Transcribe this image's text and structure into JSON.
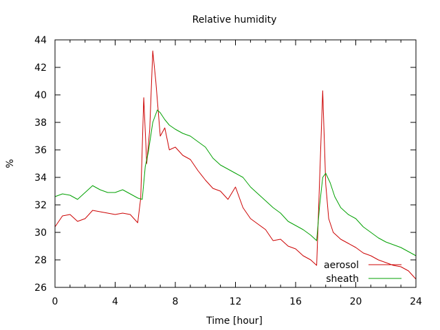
{
  "chart_data": {
    "type": "line",
    "title": "Relative humidity",
    "xlabel": "Time [hour]",
    "ylabel": "%",
    "xlim": [
      0,
      24
    ],
    "ylim": [
      26,
      44
    ],
    "xticks": [
      "0",
      "4",
      "8",
      "12",
      "16",
      "20",
      "24"
    ],
    "yticks": [
      "26",
      "28",
      "30",
      "32",
      "34",
      "36",
      "38",
      "40",
      "42",
      "44"
    ],
    "grid": false,
    "legend": "bottom-right",
    "series": [
      {
        "name": "aerosol",
        "color": "#cc0000",
        "x": [
          0,
          0.5,
          1.0,
          1.5,
          2.0,
          2.5,
          3.0,
          3.5,
          4.0,
          4.5,
          5.0,
          5.5,
          5.7,
          5.9,
          6.1,
          6.3,
          6.5,
          6.7,
          7.0,
          7.3,
          7.6,
          8.0,
          8.5,
          9.0,
          9.5,
          10.0,
          10.5,
          11.0,
          11.5,
          12.0,
          12.5,
          13.0,
          13.5,
          14.0,
          14.5,
          15.0,
          15.5,
          16.0,
          16.5,
          17.0,
          17.4,
          17.6,
          17.8,
          18.0,
          18.2,
          18.5,
          19.0,
          19.5,
          20.0,
          20.5,
          21.0,
          21.5,
          22.0,
          22.5,
          23.0,
          23.5,
          24.0
        ],
        "y": [
          30.4,
          31.2,
          31.3,
          30.8,
          31.0,
          31.6,
          31.5,
          31.4,
          31.3,
          31.4,
          31.3,
          30.7,
          32.5,
          39.8,
          35.0,
          37.5,
          43.2,
          41.0,
          37.0,
          37.6,
          36.0,
          36.2,
          35.6,
          35.3,
          34.5,
          33.8,
          33.2,
          33.0,
          32.4,
          33.3,
          31.8,
          31.0,
          30.6,
          30.2,
          29.4,
          29.5,
          29.0,
          28.8,
          28.3,
          28.0,
          27.6,
          34.0,
          40.3,
          33.5,
          31.0,
          30.0,
          29.5,
          29.2,
          28.9,
          28.5,
          28.3,
          28.0,
          27.8,
          27.6,
          27.5,
          27.2,
          26.6
        ]
      },
      {
        "name": "sheath",
        "color": "#00a000",
        "x": [
          0,
          0.5,
          1.0,
          1.5,
          2.0,
          2.5,
          3.0,
          3.5,
          4.0,
          4.5,
          5.0,
          5.5,
          5.8,
          6.0,
          6.2,
          6.5,
          6.8,
          7.0,
          7.3,
          7.6,
          8.0,
          8.5,
          9.0,
          9.5,
          10.0,
          10.5,
          11.0,
          11.5,
          12.0,
          12.5,
          13.0,
          13.5,
          14.0,
          14.5,
          15.0,
          15.5,
          16.0,
          16.5,
          17.0,
          17.4,
          17.6,
          17.8,
          18.0,
          18.3,
          18.6,
          19.0,
          19.5,
          20.0,
          20.5,
          21.0,
          21.5,
          22.0,
          22.5,
          23.0,
          23.5,
          24.0
        ],
        "y": [
          32.6,
          32.8,
          32.7,
          32.4,
          32.9,
          33.4,
          33.1,
          32.9,
          32.9,
          33.1,
          32.8,
          32.5,
          32.4,
          34.8,
          35.8,
          38.0,
          38.9,
          38.7,
          38.2,
          37.8,
          37.5,
          37.2,
          37.0,
          36.6,
          36.2,
          35.4,
          34.9,
          34.6,
          34.3,
          34.0,
          33.3,
          32.8,
          32.3,
          31.8,
          31.4,
          30.8,
          30.5,
          30.2,
          29.8,
          29.4,
          32.0,
          34.0,
          34.3,
          33.6,
          32.6,
          31.8,
          31.3,
          31.0,
          30.4,
          30.0,
          29.6,
          29.3,
          29.1,
          28.9,
          28.6,
          28.3
        ]
      }
    ]
  }
}
